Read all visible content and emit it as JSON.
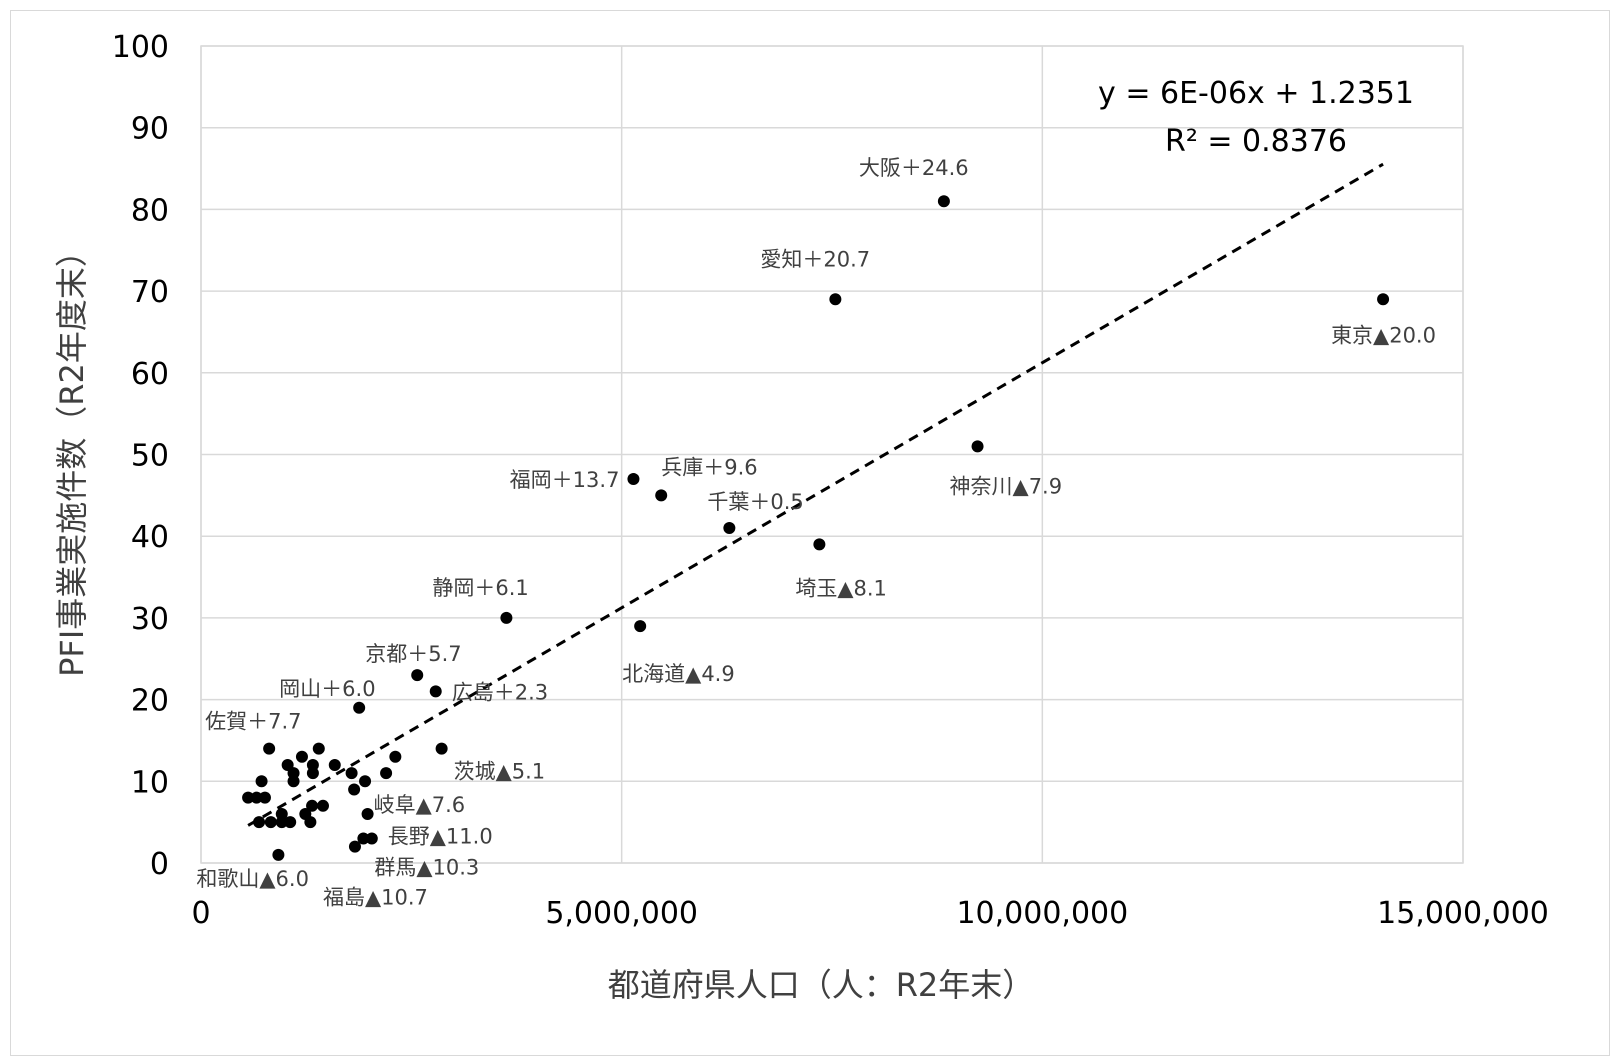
{
  "chart_data": {
    "type": "scatter",
    "xlabel": "都道府県人口（人：R2年末）",
    "ylabel": "PFI事業実施件数（R2年度末）",
    "xlim": [
      0,
      15000000
    ],
    "ylim": [
      0,
      100
    ],
    "x_ticks": [
      "0",
      "5,000,000",
      "10,000,000",
      "15,000,000"
    ],
    "y_ticks": [
      "0",
      "10",
      "20",
      "30",
      "40",
      "50",
      "60",
      "70",
      "80",
      "90",
      "100"
    ],
    "grid": true,
    "point_color": "#000000",
    "trendline": {
      "style": "dashed",
      "equation": "y = 6E-06x + 1.2351",
      "r_squared": "R² = 0.8376",
      "slope": 6e-06,
      "intercept": 1.2351
    },
    "labeled_points": [
      {
        "label": "東京▲20.0",
        "x": 14050000,
        "y": 69
      },
      {
        "label": "大阪＋24.6",
        "x": 8830000,
        "y": 81
      },
      {
        "label": "愛知＋20.7",
        "x": 7540000,
        "y": 69
      },
      {
        "label": "神奈川▲7.9",
        "x": 9230000,
        "y": 51
      },
      {
        "label": "埼玉▲8.1",
        "x": 7350000,
        "y": 39
      },
      {
        "label": "千葉＋0.5",
        "x": 6280000,
        "y": 41
      },
      {
        "label": "兵庫＋9.6",
        "x": 5470000,
        "y": 45
      },
      {
        "label": "福岡＋13.7",
        "x": 5140000,
        "y": 47
      },
      {
        "label": "北海道▲4.9",
        "x": 5220000,
        "y": 29
      },
      {
        "label": "静岡＋6.1",
        "x": 3630000,
        "y": 30
      },
      {
        "label": "京都＋5.7",
        "x": 2570000,
        "y": 23
      },
      {
        "label": "広島＋2.3",
        "x": 2790000,
        "y": 21
      },
      {
        "label": "岡山＋6.0",
        "x": 1880000,
        "y": 19
      },
      {
        "label": "佐賀＋7.7",
        "x": 810000,
        "y": 14
      },
      {
        "label": "茨城▲5.1",
        "x": 2860000,
        "y": 14
      },
      {
        "label": "岐阜▲7.6",
        "x": 1980000,
        "y": 6
      },
      {
        "label": "長野▲11.0",
        "x": 2030000,
        "y": 3
      },
      {
        "label": "群馬▲10.3",
        "x": 1930000,
        "y": 3
      },
      {
        "label": "福島▲10.7",
        "x": 1830000,
        "y": 2
      },
      {
        "label": "和歌山▲6.0",
        "x": 920000,
        "y": 1
      }
    ],
    "unlabeled_points": [
      {
        "x": 2310000,
        "y": 13
      },
      {
        "x": 2200000,
        "y": 11
      },
      {
        "x": 1950000,
        "y": 10
      },
      {
        "x": 1790000,
        "y": 11
      },
      {
        "x": 1590000,
        "y": 12
      },
      {
        "x": 1400000,
        "y": 14
      },
      {
        "x": 1330000,
        "y": 11
      },
      {
        "x": 1330000,
        "y": 12
      },
      {
        "x": 1200000,
        "y": 13
      },
      {
        "x": 1100000,
        "y": 11
      },
      {
        "x": 1100000,
        "y": 10
      },
      {
        "x": 1030000,
        "y": 12
      },
      {
        "x": 720000,
        "y": 10
      },
      {
        "x": 560000,
        "y": 8
      },
      {
        "x": 660000,
        "y": 8
      },
      {
        "x": 760000,
        "y": 8
      },
      {
        "x": 690000,
        "y": 5
      },
      {
        "x": 830000,
        "y": 5
      },
      {
        "x": 960000,
        "y": 6
      },
      {
        "x": 960000,
        "y": 5
      },
      {
        "x": 1060000,
        "y": 5
      },
      {
        "x": 1240000,
        "y": 6
      },
      {
        "x": 1320000,
        "y": 7
      },
      {
        "x": 1300000,
        "y": 5
      },
      {
        "x": 1450000,
        "y": 7
      },
      {
        "x": 1820000,
        "y": 9
      }
    ]
  }
}
